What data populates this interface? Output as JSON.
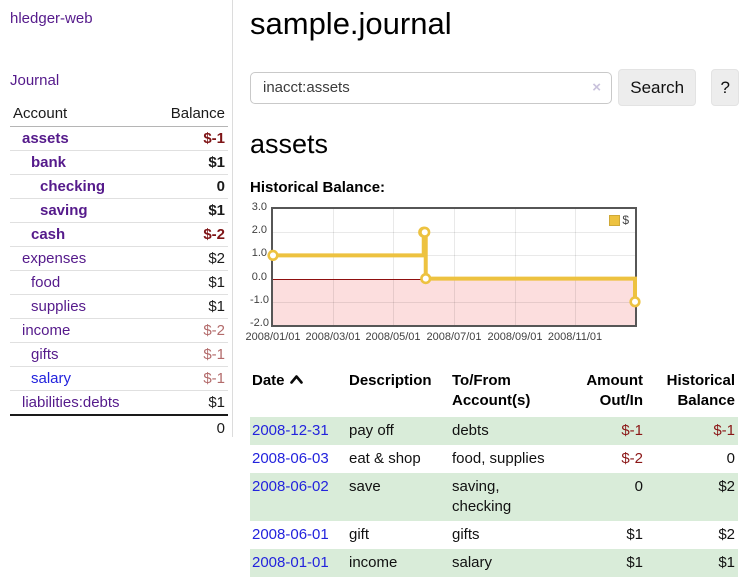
{
  "app": {
    "title": "hledger-web"
  },
  "sidebar": {
    "journal_link": "Journal",
    "accounts_table": {
      "header_account": "Account",
      "header_balance": "Balance",
      "rows": [
        {
          "name": "assets",
          "indent": 1,
          "bold": true,
          "balance": "$-1",
          "balance_style": "neg-strong",
          "link": "visited"
        },
        {
          "name": "bank",
          "indent": 2,
          "bold": true,
          "balance": "$1",
          "balance_style": "pos",
          "link": "visited"
        },
        {
          "name": "checking",
          "indent": 3,
          "bold": true,
          "balance": "0",
          "balance_style": "pos",
          "link": "visited"
        },
        {
          "name": "saving",
          "indent": 3,
          "bold": true,
          "balance": "$1",
          "balance_style": "pos",
          "link": "visited"
        },
        {
          "name": "cash",
          "indent": 2,
          "bold": true,
          "balance": "$-2",
          "balance_style": "neg-strong",
          "link": "visited"
        },
        {
          "name": "expenses",
          "indent": 1,
          "bold": false,
          "balance": "$2",
          "balance_style": "pos",
          "link": "visited"
        },
        {
          "name": "food",
          "indent": 2,
          "bold": false,
          "balance": "$1",
          "balance_style": "pos",
          "link": "visited"
        },
        {
          "name": "supplies",
          "indent": 2,
          "bold": false,
          "balance": "$1",
          "balance_style": "pos",
          "link": "visited"
        },
        {
          "name": "income",
          "indent": 1,
          "bold": false,
          "balance": "$-2",
          "balance_style": "neg-muted",
          "link": "visited"
        },
        {
          "name": "gifts",
          "indent": 2,
          "bold": false,
          "balance": "$-1",
          "balance_style": "neg-muted",
          "link": "visited"
        },
        {
          "name": "salary",
          "indent": 2,
          "bold": false,
          "balance": "$-1",
          "balance_style": "neg-muted",
          "link": "unvisited"
        },
        {
          "name": "liabilities:debts",
          "indent": 1,
          "bold": false,
          "balance": "$1",
          "balance_style": "pos",
          "link": "visited"
        }
      ],
      "total": "0"
    }
  },
  "main": {
    "title": "sample.journal",
    "search": {
      "value": "inacct:assets",
      "clear_icon": "×",
      "button_label": "Search",
      "help_label": "?"
    },
    "account_heading": "assets",
    "chart_label": "Historical Balance:"
  },
  "chart_data": {
    "type": "line",
    "step": true,
    "title": "Historical Balance:",
    "series": [
      {
        "name": "$",
        "color": "#edc240",
        "points": [
          {
            "date": "2008-01-01",
            "value": 1
          },
          {
            "date": "2008-06-01",
            "value": 2
          },
          {
            "date": "2008-06-02",
            "value": 2
          },
          {
            "date": "2008-06-03",
            "value": 0
          },
          {
            "date": "2008-12-31",
            "value": -1
          }
        ]
      }
    ],
    "x_start": "2008-01-01",
    "x_end": "2008-12-31",
    "ylim": [
      -2,
      3
    ],
    "yticks": [
      "3.0",
      "2.0",
      "1.0",
      "0.0",
      "-1.0",
      "-2.0"
    ],
    "ytick_values": [
      3,
      2,
      1,
      0,
      -1,
      -2
    ],
    "xticks": [
      "2008/01/01",
      "2008/03/01",
      "2008/05/01",
      "2008/07/01",
      "2008/09/01",
      "2008/11/01"
    ],
    "grid": true,
    "legend_position": "top-right",
    "negative_region_color": "#fcdede",
    "zero_line_color": "#8f0f0f"
  },
  "register_table": {
    "headers": {
      "date": "Date",
      "description": "Description",
      "accounts": "To/From Account(s)",
      "amount": "Amount Out/In",
      "balance": "Historical Balance"
    },
    "sort": "ascending",
    "rows": [
      {
        "date": "2008-12-31",
        "description": "pay off",
        "accounts": "debts",
        "amount": "$-1",
        "amount_negative": true,
        "balance": "$-1",
        "balance_negative": true,
        "highlighted": true
      },
      {
        "date": "2008-06-03",
        "description": "eat & shop",
        "accounts": "food, supplies",
        "amount": "$-2",
        "amount_negative": true,
        "balance": "0",
        "balance_negative": false,
        "highlighted": false
      },
      {
        "date": "2008-06-02",
        "description": "save",
        "accounts": "saving, checking",
        "amount": "0",
        "amount_negative": false,
        "balance": "$2",
        "balance_negative": false,
        "highlighted": true
      },
      {
        "date": "2008-06-01",
        "description": "gift",
        "accounts": "gifts",
        "amount": "$1",
        "amount_negative": false,
        "balance": "$2",
        "balance_negative": false,
        "highlighted": false
      },
      {
        "date": "2008-01-01",
        "description": "income",
        "accounts": "salary",
        "amount": "$1",
        "amount_negative": false,
        "balance": "$1",
        "balance_negative": false,
        "highlighted": true
      }
    ]
  },
  "colors": {
    "link_visited": "#551a8b",
    "link_unvisited": "#2323dd",
    "negative_strong": "#7e1416",
    "negative_muted": "#b36b6b",
    "row_highlight": "#d9ecd9",
    "series_gold": "#edc240"
  }
}
